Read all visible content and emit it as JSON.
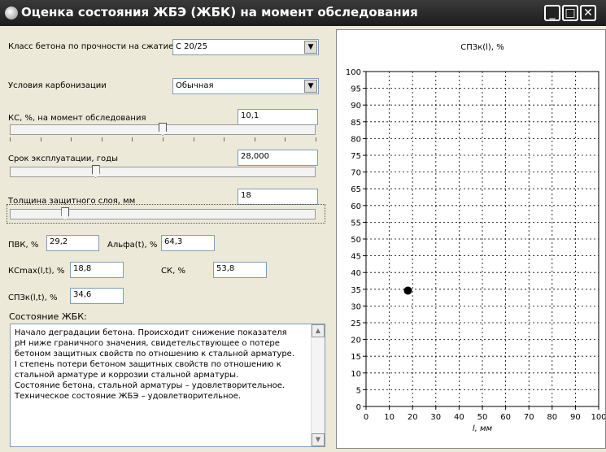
{
  "window": {
    "title": "Оценка состояния ЖБЭ (ЖБК) на момент обследования"
  },
  "form": {
    "concrete_class": {
      "label": "Класс бетона по прочности на сжатие",
      "value": "С 20/25"
    },
    "carbonization": {
      "label": "Условия карбонизации",
      "value": "Обычная"
    },
    "ks": {
      "label": "КС, %, на момент обследования",
      "value": "10,1",
      "slider_fraction": 0.5
    },
    "service_life": {
      "label": "Срок эксплуатации, годы",
      "value": "28,000",
      "slider_fraction": 0.28
    },
    "cover": {
      "label": "Толщина защитного слоя, мм",
      "value": "18",
      "slider_fraction": 0.18
    },
    "pvk": {
      "label": "ПВК, %",
      "value": "29,2"
    },
    "alpha": {
      "label": "Альфа(t), %",
      "value": "64,3"
    },
    "kcmax": {
      "label": "КСmax(l,t), %",
      "value": "18,8"
    },
    "sk": {
      "label": "СК, %",
      "value": "53,8"
    },
    "spz": {
      "label": "СПЗк(l,t), %",
      "value": "34,6"
    },
    "state_label": "Состояние ЖБК:",
    "state_text": "Начало деградации бетона. Происходит снижение показателя рН ниже граничного значения, свидетельствующее о потере бетоном защитных свойств по отношению к стальной арматуре.\nI степень потери бетоном защитных свойств по отношению к стальной арматуре и коррозии стальной арматуры.\nСостояние бетона, стальной арматуры – удовлетворительное.\nТехническое состояние ЖБЭ – удовлетворительное."
  },
  "chart_data": {
    "type": "scatter",
    "title": "СПЗк(l), %",
    "xlabel": "l, мм",
    "ylabel": "",
    "xlim": [
      0,
      100
    ],
    "ylim": [
      0,
      100
    ],
    "xticks": [
      0,
      10,
      20,
      30,
      40,
      50,
      60,
      70,
      80,
      90,
      100
    ],
    "yticks": [
      0,
      5,
      10,
      15,
      20,
      25,
      30,
      35,
      40,
      45,
      50,
      55,
      60,
      65,
      70,
      75,
      80,
      85,
      90,
      95,
      100
    ],
    "grid": true,
    "points": [
      {
        "x": 18,
        "y": 34.6
      }
    ]
  }
}
